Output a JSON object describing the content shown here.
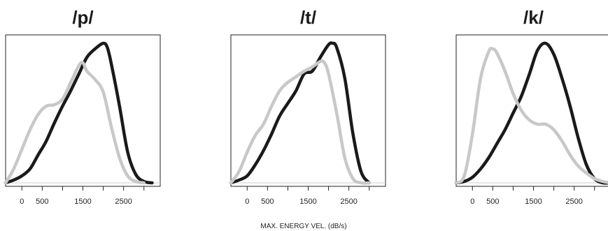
{
  "chart_data": [
    {
      "type": "line",
      "title": "/p/",
      "xlim": [
        -400,
        3400
      ],
      "ticks": [
        0,
        500,
        1500,
        2500
      ],
      "grid": false,
      "series": [
        {
          "color": "#1a1a1a",
          "x": [
            -400,
            -200,
            0,
            200,
            400,
            600,
            800,
            1000,
            1200,
            1400,
            1600,
            1800,
            2000,
            2100,
            2200,
            2400,
            2600,
            2800,
            3000,
            3200
          ],
          "y": [
            0.0,
            0.02,
            0.05,
            0.1,
            0.2,
            0.3,
            0.43,
            0.55,
            0.66,
            0.78,
            0.9,
            0.96,
            1.0,
            0.97,
            0.85,
            0.55,
            0.22,
            0.06,
            0.01,
            0.0
          ]
        },
        {
          "color": "#c8c8c8",
          "x": [
            -400,
            -200,
            0,
            200,
            400,
            600,
            800,
            1000,
            1200,
            1400,
            1500,
            1600,
            1800,
            2000,
            2200,
            2400,
            2600,
            2800,
            3000
          ],
          "y": [
            0.0,
            0.1,
            0.24,
            0.38,
            0.49,
            0.55,
            0.56,
            0.6,
            0.72,
            0.84,
            0.86,
            0.8,
            0.74,
            0.65,
            0.4,
            0.18,
            0.05,
            0.01,
            0.0
          ]
        }
      ]
    },
    {
      "type": "line",
      "title": "/t/",
      "xlim": [
        -400,
        3400
      ],
      "ticks": [
        0,
        500,
        1500,
        2500
      ],
      "grid": false,
      "series": [
        {
          "color": "#1a1a1a",
          "x": [
            -400,
            -200,
            0,
            200,
            400,
            600,
            800,
            1000,
            1200,
            1400,
            1600,
            1800,
            2000,
            2100,
            2200,
            2400,
            2600,
            2800,
            3000
          ],
          "y": [
            0.0,
            0.02,
            0.05,
            0.13,
            0.23,
            0.35,
            0.48,
            0.57,
            0.66,
            0.78,
            0.8,
            0.9,
            0.99,
            1.0,
            0.97,
            0.75,
            0.35,
            0.08,
            0.0
          ]
        },
        {
          "color": "#c8c8c8",
          "x": [
            -400,
            -200,
            0,
            200,
            400,
            600,
            800,
            1000,
            1200,
            1400,
            1600,
            1800,
            1900,
            2000,
            2200,
            2400,
            2600,
            2800,
            3000
          ],
          "y": [
            0.0,
            0.08,
            0.22,
            0.34,
            0.42,
            0.55,
            0.66,
            0.72,
            0.76,
            0.8,
            0.83,
            0.87,
            0.86,
            0.78,
            0.5,
            0.18,
            0.03,
            0.0,
            0.0
          ]
        }
      ]
    },
    {
      "type": "line",
      "title": "/k/",
      "xlim": [
        -400,
        3400
      ],
      "ticks": [
        0,
        500,
        1500,
        2500
      ],
      "grid": false,
      "series": [
        {
          "color": "#1a1a1a",
          "x": [
            -400,
            -200,
            0,
            200,
            400,
            600,
            800,
            1000,
            1200,
            1400,
            1600,
            1800,
            2000,
            2200,
            2400,
            2600,
            2800,
            3000,
            3200,
            3400
          ],
          "y": [
            0.0,
            0.01,
            0.04,
            0.1,
            0.18,
            0.28,
            0.38,
            0.5,
            0.62,
            0.78,
            0.95,
            1.0,
            0.92,
            0.75,
            0.55,
            0.32,
            0.13,
            0.03,
            0.0,
            0.0
          ]
        },
        {
          "color": "#c8c8c8",
          "x": [
            -400,
            -200,
            0,
            200,
            400,
            500,
            600,
            800,
            1000,
            1200,
            1400,
            1600,
            1800,
            2000,
            2200,
            2400,
            2600,
            2800,
            3000,
            3200,
            3400
          ],
          "y": [
            0.0,
            0.05,
            0.35,
            0.75,
            0.94,
            0.96,
            0.93,
            0.8,
            0.64,
            0.52,
            0.45,
            0.42,
            0.42,
            0.38,
            0.3,
            0.2,
            0.12,
            0.07,
            0.03,
            0.01,
            0.0
          ]
        }
      ]
    }
  ],
  "figure": {
    "xlabel": "MAX. ENERGY VEL. (dB/s)"
  }
}
